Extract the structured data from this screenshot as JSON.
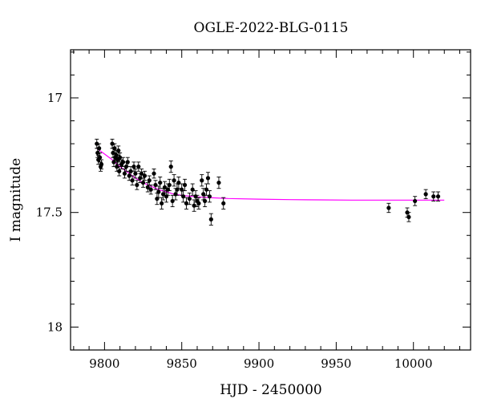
{
  "chart_data": {
    "type": "scatter",
    "title": "OGLE-2022-BLG-0115",
    "xlabel": "HJD - 2450000",
    "ylabel": "I magnitude",
    "xlim": [
      9778,
      10037
    ],
    "ylim": [
      18.1,
      16.79
    ],
    "y_inverted": true,
    "grid": false,
    "legend": "none",
    "x_ticks": [
      9800,
      9850,
      9900,
      9950,
      10000
    ],
    "x_tick_labels": [
      "9800",
      "9850",
      "9900",
      "9950",
      "10000"
    ],
    "y_ticks": [
      17,
      17.5,
      18
    ],
    "y_tick_labels": [
      "17",
      "17.5",
      "18"
    ],
    "colors": {
      "points": "#000000",
      "model": "#ff00ff",
      "axes": "#000000"
    },
    "series": [
      {
        "kind": "points",
        "x": [
          9795.0,
          9795.5,
          9796.0,
          9796.5,
          9797.0,
          9797.5,
          9798.0,
          9805.0,
          9805.5,
          9806.0,
          9806.5,
          9807.0,
          9807.5,
          9808.0,
          9808.5,
          9809.0,
          9809.5,
          9810.0,
          9811.0,
          9812.0,
          9813.0,
          9814.0,
          9815.0,
          9816.0,
          9817.0,
          9818.0,
          9819.0,
          9820.0,
          9821.0,
          9822.0,
          9823.0,
          9824.0,
          9825.0,
          9826.0,
          9828.0,
          9829.0,
          9830.0,
          9832.0,
          9833.0,
          9834.0,
          9835.0,
          9836.0,
          9837.0,
          9838.0,
          9839.0,
          9840.0,
          9841.0,
          9842.0,
          9843.0,
          9844.0,
          9845.0,
          9846.0,
          9847.0,
          9848.0,
          9850.0,
          9851.0,
          9852.0,
          9853.0,
          9855.0,
          9857.0,
          9858.0,
          9859.0,
          9860.0,
          9861.0,
          9863.0,
          9864.0,
          9865.0,
          9866.0,
          9867.0,
          9868.0,
          9869.0,
          9874.0,
          9877.0,
          9984.0,
          9996.0,
          9997.0,
          10001.0,
          10008.0,
          10013.0,
          10016.0
        ],
        "y": [
          17.2,
          17.24,
          17.27,
          17.22,
          17.26,
          17.3,
          17.29,
          17.2,
          17.24,
          17.28,
          17.22,
          17.26,
          17.25,
          17.3,
          17.27,
          17.23,
          17.32,
          17.26,
          17.29,
          17.28,
          17.33,
          17.3,
          17.28,
          17.34,
          17.32,
          17.36,
          17.3,
          17.33,
          17.38,
          17.3,
          17.35,
          17.33,
          17.37,
          17.34,
          17.39,
          17.36,
          17.4,
          17.33,
          17.38,
          17.44,
          17.41,
          17.37,
          17.46,
          17.42,
          17.39,
          17.43,
          17.4,
          17.38,
          17.3,
          17.45,
          17.36,
          17.42,
          17.4,
          17.37,
          17.4,
          17.43,
          17.38,
          17.46,
          17.44,
          17.4,
          17.47,
          17.43,
          17.45,
          17.46,
          17.36,
          17.42,
          17.45,
          17.4,
          17.35,
          17.43,
          17.53,
          17.37,
          17.46,
          17.48,
          17.5,
          17.52,
          17.45,
          17.42,
          17.43,
          17.43
        ],
        "err": [
          0.02,
          0.02,
          0.02,
          0.02,
          0.02,
          0.02,
          0.02,
          0.02,
          0.02,
          0.02,
          0.02,
          0.02,
          0.02,
          0.02,
          0.02,
          0.02,
          0.02,
          0.02,
          0.02,
          0.02,
          0.02,
          0.02,
          0.02,
          0.02,
          0.02,
          0.02,
          0.02,
          0.02,
          0.02,
          0.02,
          0.02,
          0.02,
          0.02,
          0.02,
          0.02,
          0.02,
          0.02,
          0.02,
          0.02,
          0.025,
          0.025,
          0.025,
          0.025,
          0.025,
          0.025,
          0.025,
          0.025,
          0.025,
          0.025,
          0.025,
          0.025,
          0.025,
          0.025,
          0.025,
          0.025,
          0.025,
          0.025,
          0.025,
          0.025,
          0.025,
          0.025,
          0.025,
          0.025,
          0.025,
          0.025,
          0.025,
          0.025,
          0.025,
          0.025,
          0.025,
          0.025,
          0.025,
          0.025,
          0.02,
          0.02,
          0.02,
          0.02,
          0.02,
          0.02,
          0.02
        ]
      },
      {
        "kind": "model",
        "x": [
          9795,
          9800,
          9805,
          9810,
          9815,
          9820,
          9825,
          9830,
          9835,
          9840,
          9845,
          9850,
          9860,
          9870,
          9880,
          9900,
          9920,
          9940,
          9960,
          9980,
          10000,
          10020
        ],
        "y": [
          17.22,
          17.245,
          17.27,
          17.3,
          17.325,
          17.35,
          17.37,
          17.385,
          17.4,
          17.41,
          17.42,
          17.425,
          17.432,
          17.436,
          17.439,
          17.442,
          17.444,
          17.445,
          17.446,
          17.446,
          17.446,
          17.446
        ]
      }
    ]
  }
}
